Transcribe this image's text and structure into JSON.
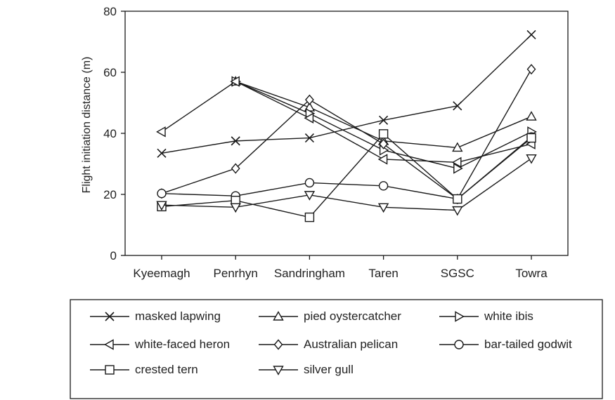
{
  "chart_data": {
    "type": "line",
    "ylabel": "Flight initiation distance (m)",
    "xlabel": "",
    "ylim": [
      0,
      80
    ],
    "yticks": [
      0,
      20,
      40,
      60,
      80
    ],
    "categories": [
      "Kyeemagh",
      "Penrhyn",
      "Sandringham",
      "Taren",
      "SGSC",
      "Towra"
    ],
    "grid": false,
    "legend_position": "bottom",
    "series": [
      {
        "name": "masked lapwing",
        "marker": "x",
        "values": [
          33.5,
          37.5,
          38.5,
          44.3,
          49,
          72.3
        ]
      },
      {
        "name": "pied oystercatcher",
        "marker": "triangle-up",
        "values": [
          null,
          57,
          48.5,
          37.5,
          35.3,
          45.5
        ]
      },
      {
        "name": "white ibis",
        "marker": "triangle-right",
        "values": [
          null,
          57,
          46.5,
          34.5,
          28.5,
          40.5
        ]
      },
      {
        "name": "white-faced heron",
        "marker": "triangle-left",
        "values": [
          40.5,
          57,
          45,
          31.5,
          30.5,
          36.5
        ]
      },
      {
        "name": "Australian pelican",
        "marker": "diamond",
        "values": [
          20.3,
          28.5,
          51,
          36.5,
          18.5,
          61
        ]
      },
      {
        "name": "bar-tailed godwit",
        "marker": "circle",
        "values": [
          20.3,
          19.5,
          23.8,
          22.8,
          18.5,
          38.8
        ]
      },
      {
        "name": "crested tern",
        "marker": "square",
        "values": [
          16,
          18,
          12.5,
          39.8,
          18.5,
          38.5
        ]
      },
      {
        "name": "silver gull",
        "marker": "triangle-down",
        "values": [
          16.5,
          15.8,
          19.8,
          15.8,
          14.8,
          31.8
        ]
      }
    ]
  }
}
